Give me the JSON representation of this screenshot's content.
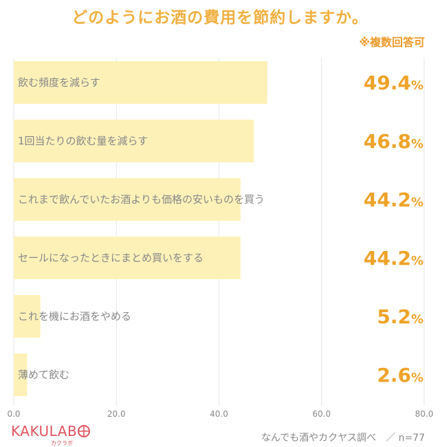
{
  "title": "どのようにお酒の費用を節約しますか。",
  "note": "※複数回答可",
  "chart_data": {
    "type": "bar",
    "orientation": "horizontal",
    "categories": [
      "飲む頻度を減らす",
      "1回当たりの飲む量を減らす",
      "これまで飲んでいたお酒よりも価格の安いものを買う",
      "セールになったときにまとめ買いをする",
      "これを機にお酒をやめる",
      "薄めて飲む"
    ],
    "values": [
      49.4,
      46.8,
      44.2,
      44.2,
      5.2,
      2.6
    ],
    "value_unit": "%",
    "xlim": [
      0,
      80
    ],
    "xticks": [
      "0.0",
      "20.0",
      "40.0",
      "60.0",
      "80.0"
    ],
    "grid": true
  },
  "colors": {
    "bar": "#fdf1b8",
    "value": "#eea32a",
    "title": "#f0b040",
    "label": "#888888",
    "grid": "#e6e6e6",
    "brand": "#e1545f"
  },
  "logo": {
    "text": "KAKULAB",
    "sub": "カクラボ"
  },
  "source": "なんでも酒やカクヤス調べ　／ n=77"
}
